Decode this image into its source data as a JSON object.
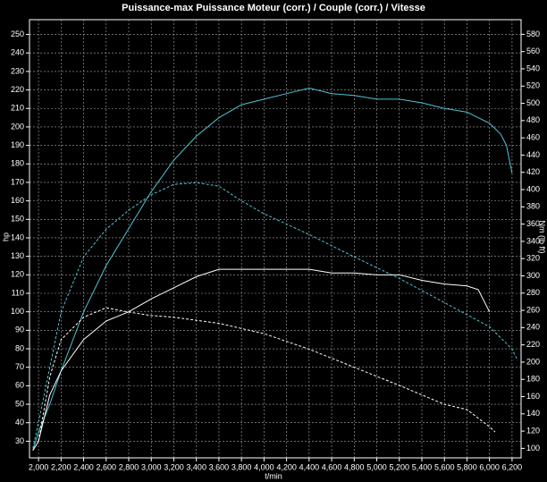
{
  "chart_data": {
    "type": "line",
    "title": "Puissance-max Puissance Moteur (corr.) / Couple (corr.) / Vitesse",
    "xlabel": "t/min",
    "ylabel": "hp",
    "y2label": "Nm (lb ft)",
    "xlim": [
      1920,
      6280
    ],
    "ylim": [
      21,
      258
    ],
    "y2lim": [
      89,
      597
    ],
    "grid": true,
    "xticks": [
      {
        "value": 2000,
        "label": "2,000"
      },
      {
        "value": 2200,
        "label": "2,200"
      },
      {
        "value": 2400,
        "label": "2,400"
      },
      {
        "value": 2600,
        "label": "2,600"
      },
      {
        "value": 2800,
        "label": "2,800"
      },
      {
        "value": 3000,
        "label": "3,000"
      },
      {
        "value": 3200,
        "label": "3,200"
      },
      {
        "value": 3400,
        "label": "3,400"
      },
      {
        "value": 3600,
        "label": "3,600"
      },
      {
        "value": 3800,
        "label": "3,800"
      },
      {
        "value": 4000,
        "label": "4,000"
      },
      {
        "value": 4200,
        "label": "4,200"
      },
      {
        "value": 4400,
        "label": "4,400"
      },
      {
        "value": 4600,
        "label": "4,600"
      },
      {
        "value": 4800,
        "label": "4,800"
      },
      {
        "value": 5000,
        "label": "5,000"
      },
      {
        "value": 5200,
        "label": "5,200"
      },
      {
        "value": 5400,
        "label": "5,400"
      },
      {
        "value": 5600,
        "label": "5,600"
      },
      {
        "value": 5800,
        "label": "5,800"
      },
      {
        "value": 6000,
        "label": "6,000"
      },
      {
        "value": 6200,
        "label": "6,200"
      }
    ],
    "yticks": [
      30,
      40,
      50,
      60,
      70,
      80,
      90,
      100,
      110,
      120,
      130,
      140,
      150,
      160,
      170,
      180,
      190,
      200,
      210,
      220,
      230,
      240,
      250
    ],
    "y2ticks": [
      100,
      120,
      140,
      160,
      180,
      200,
      220,
      240,
      260,
      280,
      300,
      320,
      340,
      360,
      380,
      400,
      420,
      440,
      460,
      480,
      500,
      520,
      540,
      560,
      580
    ],
    "series": [
      {
        "color": "#4fc3d4",
        "style": "solid",
        "axis": "y",
        "x": [
          1950,
          2000,
          2100,
          2200,
          2400,
          2600,
          2800,
          3000,
          3200,
          3400,
          3600,
          3800,
          4000,
          4200,
          4400,
          4600,
          4800,
          5000,
          5200,
          5400,
          5600,
          5800,
          6000,
          6100,
          6150,
          6200
        ],
        "values": [
          25,
          35,
          50,
          68,
          100,
          125,
          145,
          165,
          182,
          195,
          205,
          212,
          215,
          218,
          221,
          218,
          217,
          215,
          215,
          213,
          210,
          208,
          202,
          196,
          190,
          175
        ]
      },
      {
        "color": "#4fc3d4",
        "style": "dashed",
        "axis": "y2",
        "x": [
          1950,
          2000,
          2100,
          2200,
          2400,
          2600,
          2800,
          3000,
          3200,
          3400,
          3600,
          3800,
          4000,
          4400,
          4800,
          5200,
          5600,
          6000,
          6200,
          6250
        ],
        "values": [
          100,
          130,
          194,
          258,
          322,
          354,
          376,
          394,
          406,
          408,
          404,
          387,
          372,
          348,
          322,
          297,
          269,
          241,
          215,
          202
        ]
      },
      {
        "color": "#ffffff",
        "style": "solid",
        "axis": "y",
        "x": [
          1950,
          2000,
          2100,
          2200,
          2400,
          2600,
          2800,
          3000,
          3200,
          3400,
          3600,
          3800,
          4000,
          4200,
          4400,
          4600,
          4800,
          5000,
          5200,
          5400,
          5600,
          5800,
          5900,
          6000
        ],
        "values": [
          25,
          30,
          55,
          68,
          85,
          95,
          100,
          107,
          113,
          119,
          123,
          123,
          123,
          123,
          123,
          121,
          121,
          120,
          120,
          117,
          115,
          114,
          112,
          100
        ]
      },
      {
        "color": "#ffffff",
        "style": "dashed",
        "axis": "y2",
        "x": [
          2000,
          2100,
          2200,
          2400,
          2600,
          2800,
          3000,
          3200,
          3600,
          4000,
          4400,
          4800,
          5200,
          5600,
          5800,
          6000,
          6050
        ],
        "values": [
          108,
          183,
          226,
          252,
          263,
          258,
          254,
          252,
          245,
          233,
          215,
          194,
          173,
          151,
          145,
          125,
          119
        ]
      }
    ]
  }
}
